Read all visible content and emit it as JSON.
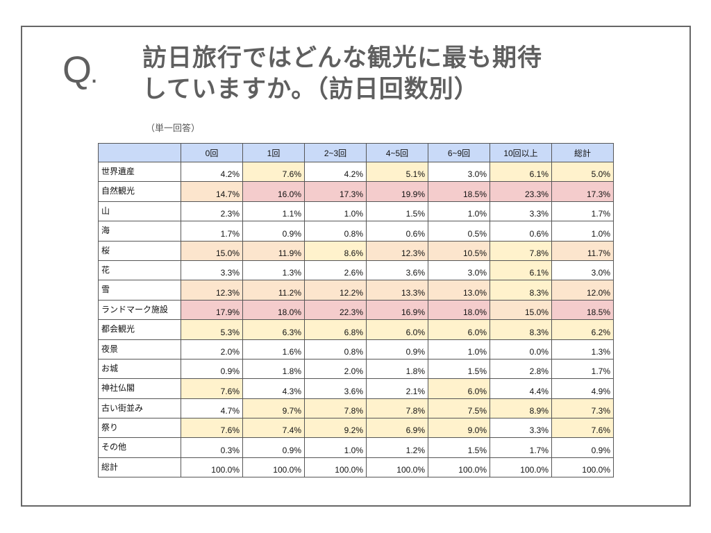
{
  "slide": {
    "q_letter": "Q",
    "q_dot": ".",
    "title_line1": "訪日旅行ではどんな観光に最も期待",
    "title_line2": "していますか。（訪日回数別）",
    "note": "（単一回答）"
  },
  "colors": {
    "header_bg": "#c9daf8",
    "low": "#fff2cc",
    "mid": "#fce5cd",
    "high": "#f4cccc",
    "none": "#ffffff"
  },
  "table": {
    "columns": [
      "",
      "0回",
      "1回",
      "2~3回",
      "4~5回",
      "6~9回",
      "10回以上",
      "総計"
    ],
    "rows": [
      {
        "label": "世界遺産",
        "values": [
          "4.2%",
          "7.6%",
          "4.2%",
          "5.1%",
          "3.0%",
          "6.1%",
          "5.0%"
        ],
        "shade": [
          "none",
          "low",
          "none",
          "low",
          "none",
          "low",
          "low"
        ]
      },
      {
        "label": "自然観光",
        "values": [
          "14.7%",
          "16.0%",
          "17.3%",
          "19.9%",
          "18.5%",
          "23.3%",
          "17.3%"
        ],
        "shade": [
          "mid",
          "high",
          "high",
          "high",
          "high",
          "high",
          "high"
        ]
      },
      {
        "label": "山",
        "values": [
          "2.3%",
          "1.1%",
          "1.0%",
          "1.5%",
          "1.0%",
          "3.3%",
          "1.7%"
        ],
        "shade": [
          "none",
          "none",
          "none",
          "none",
          "none",
          "none",
          "none"
        ]
      },
      {
        "label": "海",
        "values": [
          "1.7%",
          "0.9%",
          "0.8%",
          "0.6%",
          "0.5%",
          "0.6%",
          "1.0%"
        ],
        "shade": [
          "none",
          "none",
          "none",
          "none",
          "none",
          "none",
          "none"
        ]
      },
      {
        "label": "桜",
        "values": [
          "15.0%",
          "11.9%",
          "8.6%",
          "12.3%",
          "10.5%",
          "7.8%",
          "11.7%"
        ],
        "shade": [
          "mid",
          "mid",
          "low",
          "mid",
          "mid",
          "low",
          "mid"
        ]
      },
      {
        "label": "花",
        "values": [
          "3.3%",
          "1.3%",
          "2.6%",
          "3.6%",
          "3.0%",
          "6.1%",
          "3.0%"
        ],
        "shade": [
          "none",
          "none",
          "none",
          "none",
          "none",
          "low",
          "none"
        ]
      },
      {
        "label": "雪",
        "values": [
          "12.3%",
          "11.2%",
          "12.2%",
          "13.3%",
          "13.0%",
          "8.3%",
          "12.0%"
        ],
        "shade": [
          "mid",
          "mid",
          "mid",
          "mid",
          "mid",
          "low",
          "mid"
        ]
      },
      {
        "label": "ランドマーク施設",
        "values": [
          "17.9%",
          "18.0%",
          "22.3%",
          "16.9%",
          "18.0%",
          "15.0%",
          "18.5%"
        ],
        "shade": [
          "high",
          "high",
          "high",
          "high",
          "high",
          "mid",
          "high"
        ]
      },
      {
        "label": "都会観光",
        "values": [
          "5.3%",
          "6.3%",
          "6.8%",
          "6.0%",
          "6.0%",
          "8.3%",
          "6.2%"
        ],
        "shade": [
          "low",
          "low",
          "low",
          "low",
          "low",
          "low",
          "low"
        ]
      },
      {
        "label": "夜景",
        "values": [
          "2.0%",
          "1.6%",
          "0.8%",
          "0.9%",
          "1.0%",
          "0.0%",
          "1.3%"
        ],
        "shade": [
          "none",
          "none",
          "none",
          "none",
          "none",
          "none",
          "none"
        ]
      },
      {
        "label": "お城",
        "values": [
          "0.9%",
          "1.8%",
          "2.0%",
          "1.8%",
          "1.5%",
          "2.8%",
          "1.7%"
        ],
        "shade": [
          "none",
          "none",
          "none",
          "none",
          "none",
          "none",
          "none"
        ]
      },
      {
        "label": "神社仏閣",
        "values": [
          "7.6%",
          "4.3%",
          "3.6%",
          "2.1%",
          "6.0%",
          "4.4%",
          "4.9%"
        ],
        "shade": [
          "low",
          "none",
          "none",
          "none",
          "low",
          "none",
          "none"
        ]
      },
      {
        "label": "古い街並み",
        "values": [
          "4.7%",
          "9.7%",
          "7.8%",
          "7.8%",
          "7.5%",
          "8.9%",
          "7.3%"
        ],
        "shade": [
          "none",
          "low",
          "low",
          "low",
          "low",
          "low",
          "low"
        ]
      },
      {
        "label": "祭り",
        "values": [
          "7.6%",
          "7.4%",
          "9.2%",
          "6.9%",
          "9.0%",
          "3.3%",
          "7.6%"
        ],
        "shade": [
          "low",
          "low",
          "low",
          "low",
          "low",
          "none",
          "low"
        ]
      },
      {
        "label": "その他",
        "values": [
          "0.3%",
          "0.9%",
          "1.0%",
          "1.2%",
          "1.5%",
          "1.7%",
          "0.9%"
        ],
        "shade": [
          "none",
          "none",
          "none",
          "none",
          "none",
          "none",
          "none"
        ]
      },
      {
        "label": "総計",
        "values": [
          "100.0%",
          "100.0%",
          "100.0%",
          "100.0%",
          "100.0%",
          "100.0%",
          "100.0%"
        ],
        "shade": [
          "none",
          "none",
          "none",
          "none",
          "none",
          "none",
          "none"
        ]
      }
    ]
  }
}
